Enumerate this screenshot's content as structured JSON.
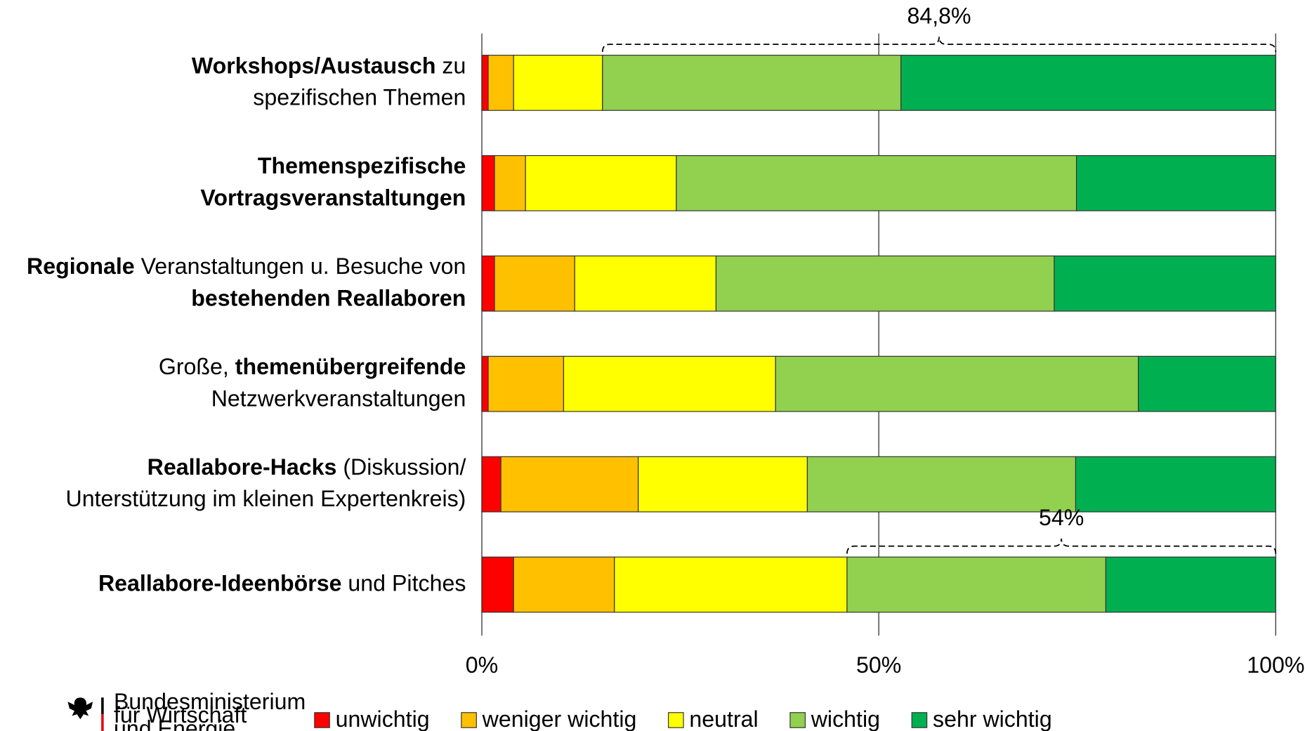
{
  "chart_data": {
    "type": "stacked_barh",
    "categories": [
      [
        [
          {
            "text": "Workshops/Austausch",
            "bold": true
          },
          {
            "text": " zu",
            "bold": false
          }
        ],
        [
          {
            "text": "spezifischen Themen",
            "bold": false
          }
        ]
      ],
      [
        [
          {
            "text": "Themenspezifische",
            "bold": true
          }
        ],
        [
          {
            "text": "Vortragsveranstaltungen",
            "bold": true
          }
        ]
      ],
      [
        [
          {
            "text": "Regionale",
            "bold": true
          },
          {
            "text": " Veranstaltungen u. Besuche von",
            "bold": false
          }
        ],
        [
          {
            "text": "bestehenden Reallaboren",
            "bold": true
          }
        ]
      ],
      [
        [
          {
            "text": "Große, ",
            "bold": false
          },
          {
            "text": "themenübergreifende",
            "bold": true
          }
        ],
        [
          {
            "text": "Netzwerkveranstaltungen",
            "bold": false
          }
        ]
      ],
      [
        [
          {
            "text": "Reallabore-Hacks",
            "bold": true
          },
          {
            "text": " (Diskussion/",
            "bold": false
          }
        ],
        [
          {
            "text": "Unterstützung im kleinen Expertenkreis)",
            "bold": false
          }
        ]
      ],
      [
        [
          {
            "text": "Reallabore-Ideenbörse",
            "bold": true
          },
          {
            "text": " und Pitches",
            "bold": false
          }
        ]
      ]
    ],
    "series": [
      {
        "name": "unwichtig",
        "color": "#ff0000",
        "values": [
          0.8,
          1.6,
          1.6,
          0.8,
          2.4,
          4.0
        ]
      },
      {
        "name": "weniger wichtig",
        "color": "#ffc000",
        "values": [
          3.2,
          3.9,
          10.1,
          9.5,
          17.3,
          12.7
        ]
      },
      {
        "name": "neutral",
        "color": "#ffff00",
        "values": [
          11.2,
          19.0,
          17.8,
          26.7,
          21.3,
          29.3
        ]
      },
      {
        "name": "wichtig",
        "color": "#92d050",
        "values": [
          37.6,
          50.4,
          42.6,
          45.7,
          33.8,
          32.6
        ]
      },
      {
        "name": "sehr wichtig",
        "color": "#00b050",
        "values": [
          47.2,
          25.1,
          27.9,
          17.3,
          25.2,
          21.4
        ]
      }
    ],
    "xlim": [
      0,
      100
    ],
    "xticks": [
      {
        "value": 0,
        "label": "0%"
      },
      {
        "value": 50,
        "label": "50%"
      },
      {
        "value": 100,
        "label": "100%"
      }
    ],
    "grid": true,
    "legend": "bottom",
    "annotations": [
      {
        "category": 0,
        "value": 84.8,
        "label": "84,8%"
      },
      {
        "category": 5,
        "value": 54,
        "label": "54%"
      }
    ]
  },
  "logo": {
    "lines": [
      "Bundesministerium",
      "für Wirtschaft",
      "und Energie"
    ]
  }
}
